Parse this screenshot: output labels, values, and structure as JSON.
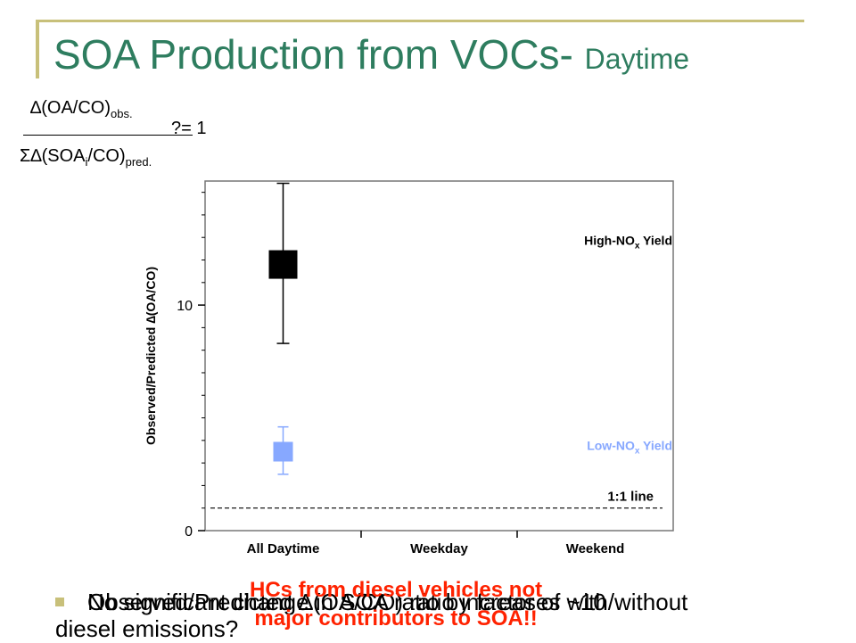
{
  "slide": {
    "title": "SOA Production from VOCs-",
    "title_sub": "Daytime"
  },
  "equation": {
    "numerator_main": "∆(OA/CO)",
    "numerator_sub": "obs.",
    "denominator_main_a": "Σ∆(SOA",
    "denominator_sub_i": "i",
    "denominator_main_b": "/CO)",
    "denominator_sub": "pred.",
    "rhs": "?= 1"
  },
  "chart_data": {
    "type": "scatter",
    "title": "",
    "xlabel": "",
    "ylabel": "Observed/Predicted ∆(OA/CO)",
    "categories": [
      "All Daytime",
      "Weekday",
      "Weekend"
    ],
    "ylim": [
      0,
      15.5
    ],
    "yticks": [
      0,
      10
    ],
    "grid": false,
    "series": [
      {
        "name": "High-NOx Yield",
        "category": "All Daytime",
        "value": 11.8,
        "err_low": 8.3,
        "err_high": 15.4,
        "color": "#000000"
      },
      {
        "name": "Low-NOx Yield",
        "category": "All Daytime",
        "value": 3.5,
        "err_low": 2.5,
        "err_high": 4.6,
        "color": "#87a8ff"
      }
    ],
    "reference_line": {
      "value": 1,
      "label": "1:1 line"
    }
  },
  "colors": {
    "title": "#2e7d5f",
    "accent_line": "#c8c07a",
    "highlight_text": "#ff2200"
  },
  "bullets": {
    "line_a": "Observed/Predicted ∆(OA/CO) ratio increases with/without",
    "line_b": "No significant change in SOA ratio by factor of ~10",
    "line_a_cont": "diesel emissions?",
    "highlight_line1": "HCs from diesel vehicles not",
    "highlight_line2": "major contributors to SOA!!"
  }
}
